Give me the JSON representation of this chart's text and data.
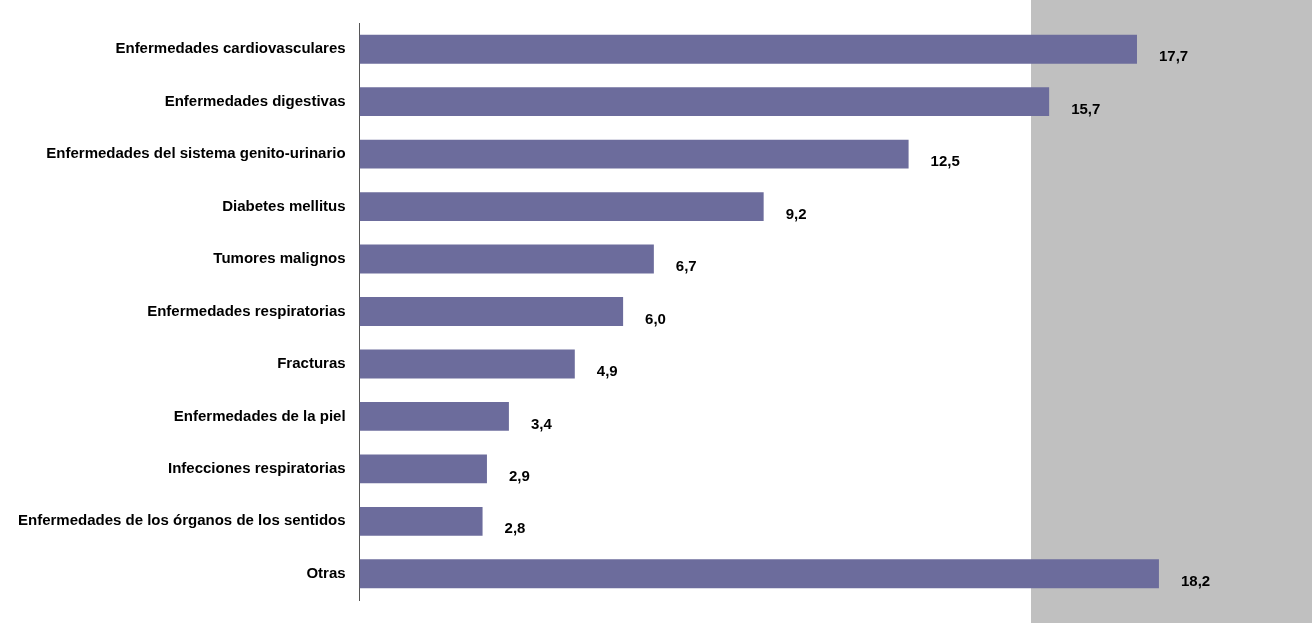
{
  "chart_data": {
    "type": "bar",
    "orientation": "horizontal",
    "categories": [
      "Enfermedades cardiovasculares",
      "Enfermedades digestivas",
      "Enfermedades del sistema genito-urinario",
      "Diabetes mellitus",
      "Tumores malignos",
      "Enfermedades respiratorias",
      "Fracturas",
      "Enfermedades de la piel",
      "Infecciones respiratorias",
      "Enfermedades de los órganos de los sentidos",
      "Otras"
    ],
    "values": [
      17.7,
      15.7,
      12.5,
      9.2,
      6.7,
      6.0,
      4.9,
      3.4,
      2.9,
      2.8,
      18.2
    ],
    "value_labels": [
      "17,7",
      "15,7",
      "12,5",
      "9,2",
      "6,7",
      "6,0",
      "4,9",
      "3,4",
      "2,9",
      "2,8",
      "18,2"
    ],
    "color": "#6c6c9c",
    "grid": false,
    "legend": false,
    "tick_labels": "y"
  }
}
